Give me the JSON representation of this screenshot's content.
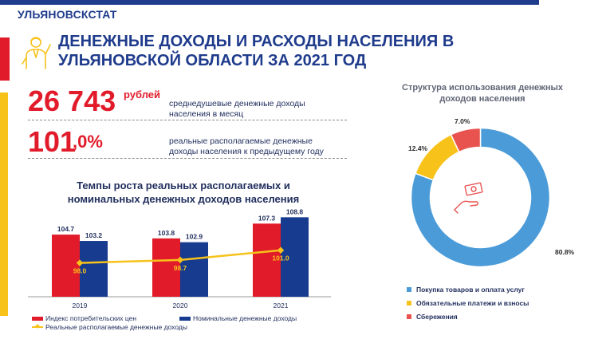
{
  "header": {
    "brand": "УЛЬЯНОВСКСТАТ"
  },
  "title": {
    "line1": "ДЕНЕЖНЫЕ ДОХОДЫ И РАСХОДЫ НАСЕЛЕНИЯ В",
    "line2": "УЛЬЯНОВСКОЙ  ОБЛАСТИ ЗА 2021 ГОД"
  },
  "icons": {
    "person": "person-presenting-icon",
    "hand_money": "hand-money-icon"
  },
  "colors": {
    "brand_blue": "#1f3b8c",
    "red": "#e11b2a",
    "dark_blue": "#173b8f",
    "yellow": "#f7c21a",
    "donut_blue": "#4a9bd8",
    "donut_coral": "#e8534f"
  },
  "stats": [
    {
      "value": "26 743",
      "unit": "рублей",
      "desc_line1": "среднедушевые денежные доходы",
      "desc_line2": "населения  в  месяц"
    },
    {
      "value": "101",
      "unit": ",0%",
      "desc_line1": "реальные располагаемые денежные",
      "desc_line2": "доходы населения к предыдущему году"
    }
  ],
  "chart_data": [
    {
      "type": "bar",
      "title_line1": "Темпы роста реальных располагаемых и",
      "title_line2": "номинальных денежных доходов населения",
      "categories": [
        "2019",
        "2020",
        "2021"
      ],
      "series": [
        {
          "name": "Индекс потребительских цен",
          "kind": "bar",
          "color": "#e11b2a",
          "values": [
            104.7,
            103.8,
            107.3
          ]
        },
        {
          "name": "Номинальные  денежные доходы",
          "kind": "bar",
          "color": "#173b8f",
          "values": [
            103.2,
            102.9,
            108.8
          ]
        },
        {
          "name": "Реальные располагаемые денежные доходы",
          "kind": "line",
          "color": "#f7c21a",
          "values": [
            98.0,
            98.7,
            101.0
          ]
        }
      ],
      "value_labels": [
        [
          "104.7",
          "103.8",
          "107.3"
        ],
        [
          "103.2",
          "102.9",
          "108.8"
        ],
        [
          "98.0",
          "98.7",
          "101.0"
        ]
      ],
      "ylim": [
        90,
        110
      ],
      "legend_position": "bottom"
    },
    {
      "type": "pie",
      "variant": "donut",
      "title_line1": "Структура  использования денежных",
      "title_line2": "доходов населения",
      "categories": [
        "Покупка товаров и оплата услуг",
        "Обязательные платежи и взносы",
        "Сбережения"
      ],
      "values": [
        80.8,
        12.4,
        7.0
      ],
      "value_labels": [
        "80.8%",
        "12.4%",
        "7.0%"
      ],
      "colors": [
        "#4a9bd8",
        "#f7c21a",
        "#e8534f"
      ],
      "legend_position": "bottom"
    }
  ]
}
